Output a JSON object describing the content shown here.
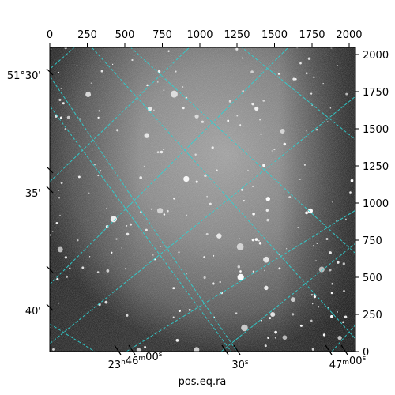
{
  "image": {
    "description_note": "",
    "pixel_axis": {
      "top_ticks": [
        "0",
        "250",
        "500",
        "750",
        "1000",
        "1250",
        "1500",
        "1750",
        "2000"
      ],
      "right_ticks": [
        "0",
        "250",
        "500",
        "750",
        "1000",
        "1250",
        "1500",
        "1750",
        "2000"
      ]
    },
    "world_axis": {
      "dec_ticks": [
        "51°30'",
        "35'",
        "40'"
      ],
      "ra_ticks": [
        {
          "main": "23",
          "sup1": "h",
          "mid": "46",
          "sup2": "m",
          "sec": "00",
          "sup3": "s"
        },
        {
          "main": "30",
          "sup1": "s"
        },
        {
          "main": "47",
          "sup1": "m",
          "mid": "00",
          "sup2": "s"
        }
      ],
      "xlabel": "pos.eq.ra"
    },
    "grid_color": "#2fd1d1",
    "grid_style": "dashed"
  }
}
